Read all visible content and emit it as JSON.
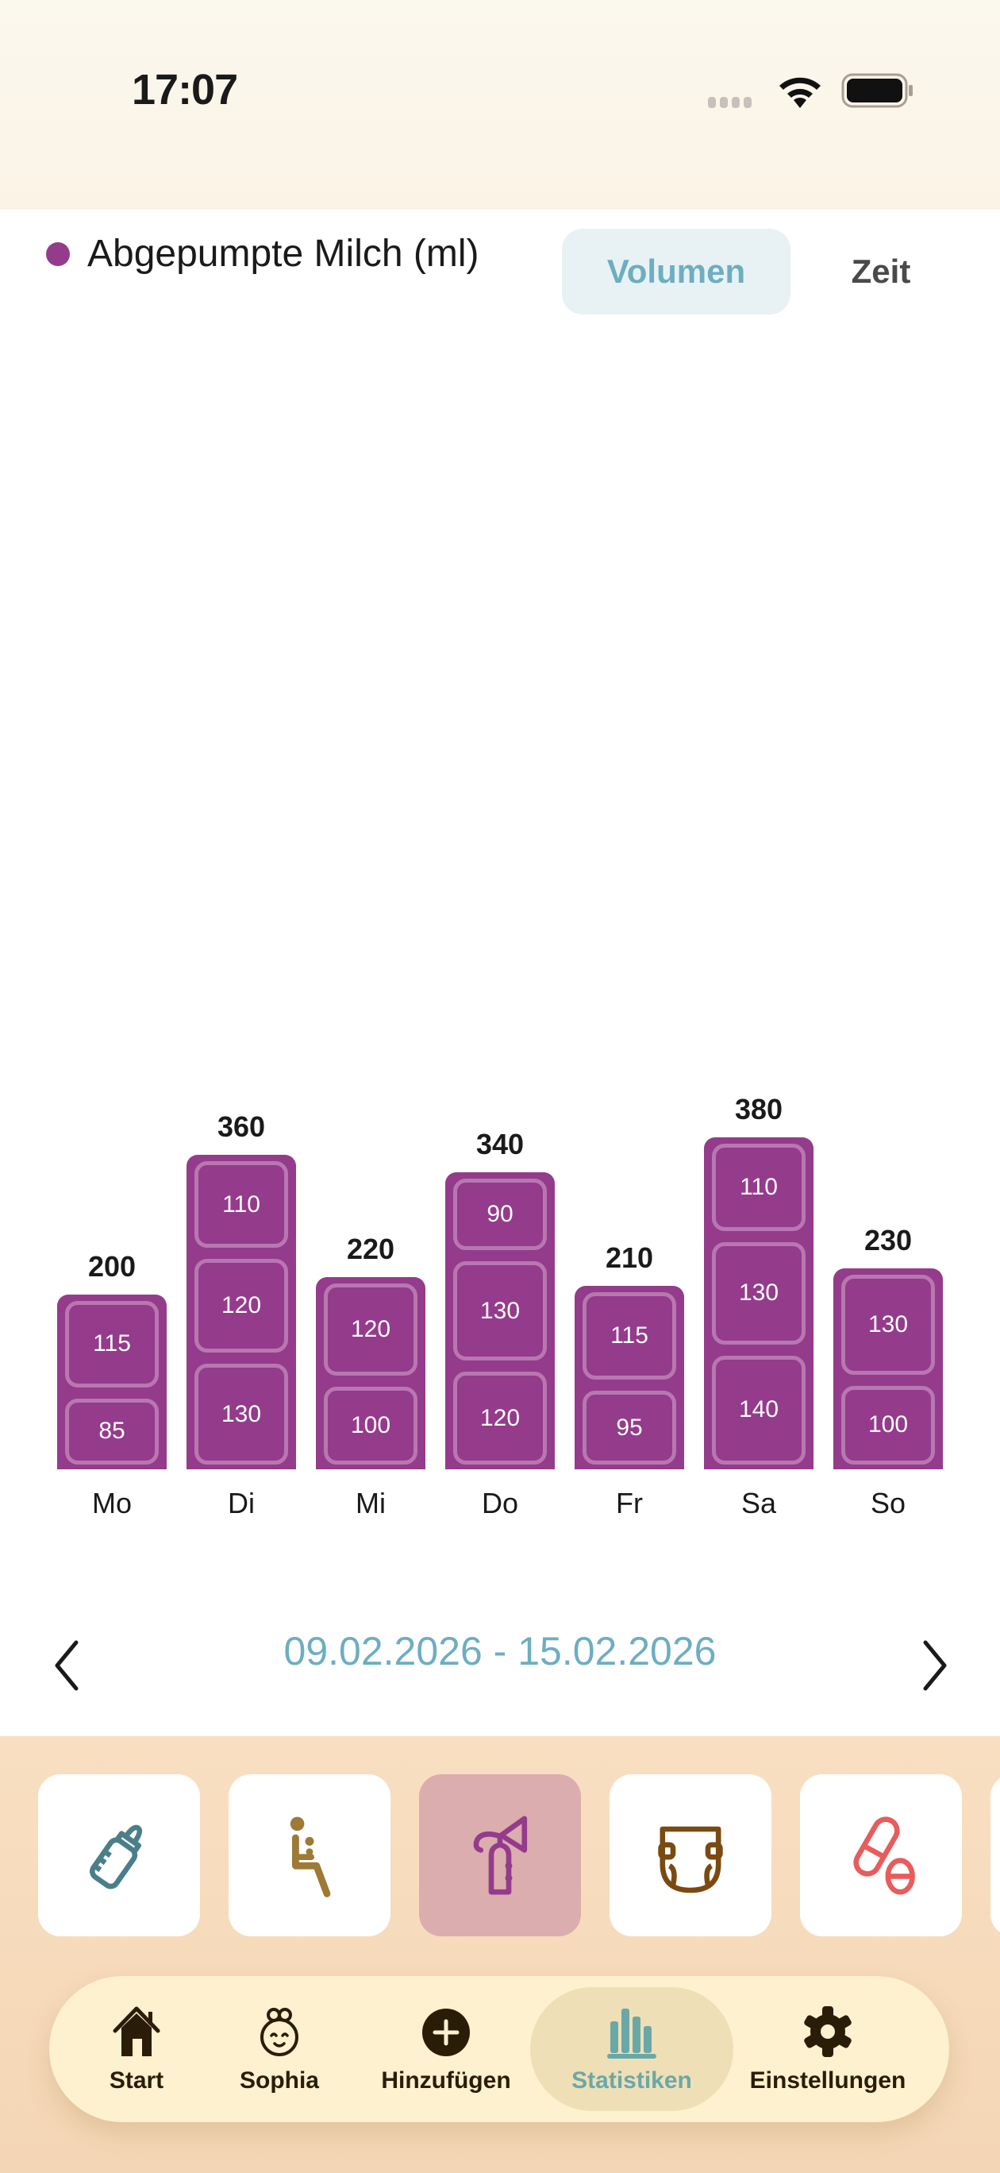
{
  "status_bar": {
    "time": "17:07",
    "icons": [
      "cellular-signal-icon",
      "wifi-icon",
      "battery-icon"
    ]
  },
  "header": {
    "legend_label": "Abgepumpte Milch (ml)",
    "legend_color": "#943b8c",
    "segments": [
      {
        "label": "Volumen",
        "selected": true
      },
      {
        "label": "Zeit",
        "selected": false
      }
    ]
  },
  "chart_data": {
    "type": "bar",
    "stacked": true,
    "title": "Abgepumpte Milch (ml)",
    "xlabel": "",
    "ylabel": "ml",
    "categories": [
      "Mo",
      "Di",
      "Mi",
      "Do",
      "Fr",
      "Sa",
      "So"
    ],
    "totals": [
      200,
      360,
      220,
      340,
      210,
      380,
      230
    ],
    "stacks": [
      [
        115,
        85
      ],
      [
        110,
        120,
        130
      ],
      [
        120,
        100
      ],
      [
        90,
        130,
        120
      ],
      [
        115,
        95
      ],
      [
        110,
        130,
        140
      ],
      [
        130,
        100
      ]
    ],
    "stack_order": "top-to-bottom",
    "color": "#943b8c",
    "grid": false,
    "legend_position": "top-left"
  },
  "chart": {
    "days": [
      {
        "label": "Mo",
        "total": "200",
        "segments": [
          "115",
          "85"
        ]
      },
      {
        "label": "Di",
        "total": "360",
        "segments": [
          "110",
          "120",
          "130"
        ]
      },
      {
        "label": "Mi",
        "total": "220",
        "segments": [
          "120",
          "100"
        ]
      },
      {
        "label": "Do",
        "total": "340",
        "segments": [
          "90",
          "130",
          "120"
        ]
      },
      {
        "label": "Fr",
        "total": "210",
        "segments": [
          "115",
          "95"
        ]
      },
      {
        "label": "Sa",
        "total": "380",
        "segments": [
          "110",
          "130",
          "140"
        ]
      },
      {
        "label": "So",
        "total": "230",
        "segments": [
          "130",
          "100"
        ]
      }
    ]
  },
  "date_nav": {
    "range": "09.02.2026 - 15.02.2026",
    "prev_icon": "chevron-left-icon",
    "next_icon": "chevron-right-icon"
  },
  "categories": [
    {
      "name": "bottle-icon",
      "color": "#4a7f8a",
      "active": false
    },
    {
      "name": "breastfeeding-icon",
      "color": "#9d7a35",
      "active": false
    },
    {
      "name": "breast-pump-icon",
      "color": "#943b8c",
      "active": true
    },
    {
      "name": "diaper-icon",
      "color": "#7a4a10",
      "active": false
    },
    {
      "name": "medicine-icon",
      "color": "#e85c5c",
      "active": false
    }
  ],
  "tabbar": {
    "items": [
      {
        "label": "Start",
        "icon": "home-icon"
      },
      {
        "label": "Sophia",
        "icon": "baby-face-icon"
      },
      {
        "label": "Hinzufügen",
        "icon": "add-circle-icon"
      },
      {
        "label": "Statistiken",
        "icon": "bar-chart-icon",
        "active": true
      },
      {
        "label": "Einstellungen",
        "icon": "gear-icon"
      }
    ],
    "active_color": "#6aa8a8"
  }
}
